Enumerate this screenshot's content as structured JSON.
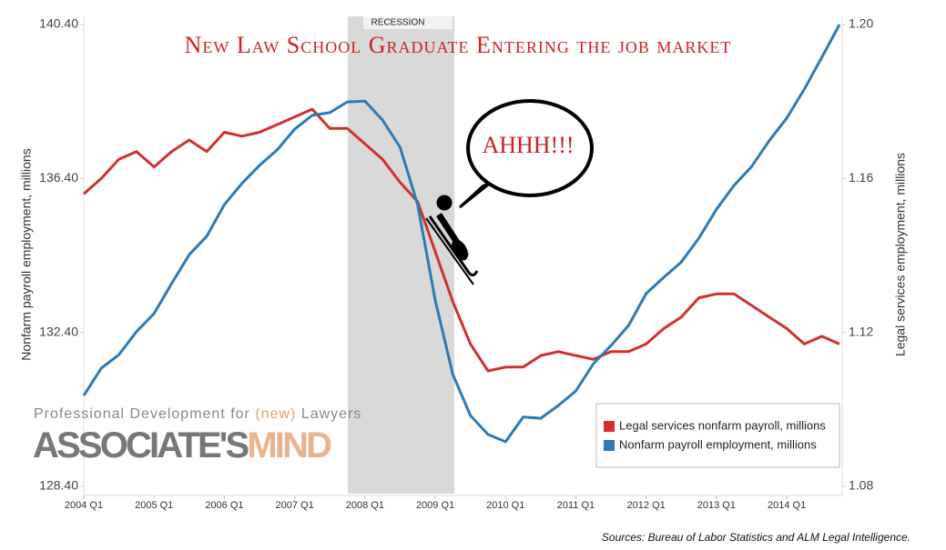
{
  "chart_data": {
    "type": "line",
    "title": "New Law School Graduate Entering the job market",
    "ylabel": "Nonfarm payroll employment, millions",
    "y2label": "Legal services employment, millions",
    "recession_label": "RECESSION",
    "speech": "AHHH!!!",
    "categories": [
      "2004 Q1",
      null,
      null,
      null,
      "2005 Q1",
      null,
      null,
      null,
      "2006 Q1",
      null,
      null,
      null,
      "2007 Q1",
      null,
      null,
      null,
      "2008 Q1",
      null,
      null,
      null,
      "2009 Q1",
      null,
      null,
      null,
      "2010 Q1",
      null,
      null,
      null,
      "2011 Q1",
      null,
      null,
      null,
      "2012 Q1",
      null,
      null,
      null,
      "2013 Q1",
      null,
      null,
      null,
      "2014 Q1",
      null,
      null,
      null
    ],
    "ylim": [
      128.4,
      140.4
    ],
    "yticks": [
      {
        "value": 128.4,
        "label": "128.40"
      },
      {
        "value": 132.4,
        "label": "132.40"
      },
      {
        "value": 136.4,
        "label": "136.40"
      },
      {
        "value": 140.4,
        "label": "140.40"
      }
    ],
    "y2lim": [
      1.08,
      1.2
    ],
    "y2ticks": [
      1.08,
      1.12,
      1.16,
      {
        "value": 1.2,
        "label": "1.20"
      }
    ],
    "legend": "lower right",
    "series": [
      {
        "name": "Legal services nonfarm payroll, millions",
        "color": "#d1302e",
        "axis": "y2",
        "values": [
          1.156,
          1.16,
          1.165,
          1.167,
          1.163,
          1.167,
          1.17,
          1.167,
          1.172,
          1.171,
          1.172,
          1.174,
          1.176,
          1.178,
          1.173,
          1.173,
          1.169,
          1.165,
          1.159,
          1.154,
          1.141,
          1.128,
          1.117,
          1.11,
          1.111,
          1.111,
          1.114,
          1.115,
          1.114,
          1.113,
          1.115,
          1.115,
          1.117,
          1.121,
          1.124,
          1.129,
          1.13,
          1.13,
          1.127,
          1.124,
          1.121,
          1.117,
          1.119,
          1.117
        ]
      },
      {
        "name": "Nonfarm payroll employment, millions",
        "color": "#2c7bb6",
        "axis": "y",
        "values": [
          130.76,
          131.47,
          131.82,
          132.42,
          132.89,
          133.67,
          134.42,
          134.9,
          135.72,
          136.27,
          136.74,
          137.14,
          137.68,
          138.04,
          138.11,
          138.39,
          138.41,
          137.92,
          137.21,
          135.72,
          133.24,
          131.31,
          130.24,
          129.75,
          129.56,
          130.2,
          130.17,
          130.5,
          130.88,
          131.59,
          132.06,
          132.58,
          133.41,
          133.83,
          134.23,
          134.85,
          135.6,
          136.22,
          136.71,
          137.38,
          137.97,
          138.72,
          139.55,
          140.4
        ]
      }
    ]
  },
  "watermark": {
    "pre": "Professional Development for",
    "highlight": "(new)",
    "post": "Lawyers",
    "logo_a": "ASSOCIATE'S",
    "logo_b": "MIND"
  },
  "source": "Sources: Bureau of Labor Statistics and ALM Legal Intelligence."
}
